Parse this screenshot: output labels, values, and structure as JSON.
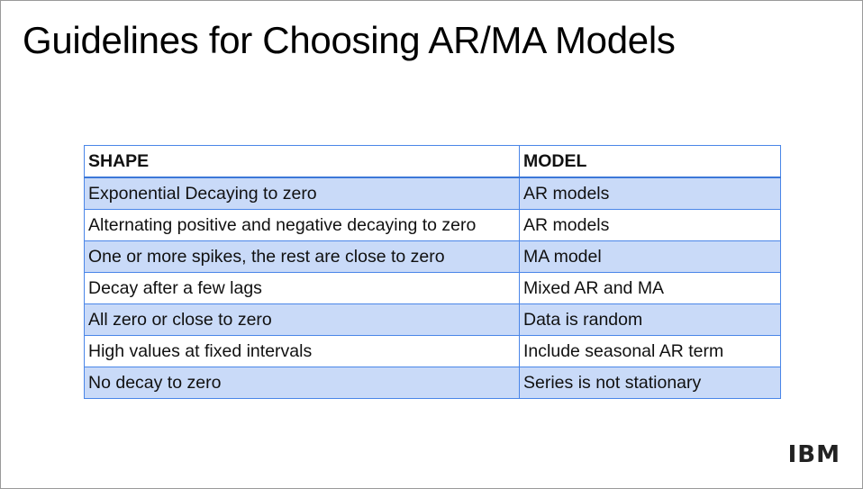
{
  "title": "Guidelines for Choosing AR/MA Models",
  "table": {
    "header": [
      "SHAPE",
      "MODEL"
    ],
    "rows": [
      [
        "Exponential Decaying to zero",
        "AR models"
      ],
      [
        "Alternating positive and negative decaying to zero",
        "AR models"
      ],
      [
        "One or more spikes, the rest are close to zero",
        "MA model"
      ],
      [
        "Decay after a few lags",
        "Mixed AR and MA"
      ],
      [
        "All zero or close to zero",
        "Data is random"
      ],
      [
        "High values at fixed intervals",
        "Include seasonal AR term"
      ],
      [
        "No decay to zero",
        "Series is not stationary"
      ]
    ]
  },
  "logo": "IBM"
}
